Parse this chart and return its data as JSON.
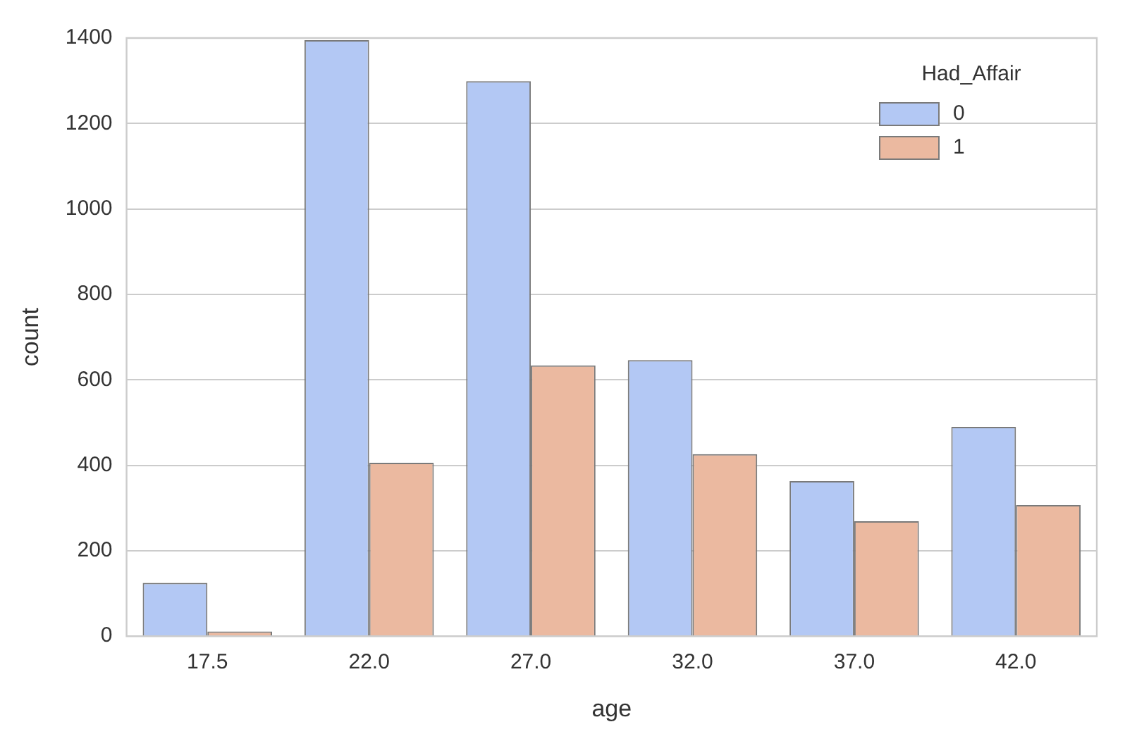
{
  "chart_data": {
    "type": "bar",
    "xlabel": "age",
    "ylabel": "count",
    "legend_title": "Had_Affair",
    "categories": [
      "17.5",
      "22.0",
      "27.0",
      "32.0",
      "37.0",
      "42.0"
    ],
    "series": [
      {
        "name": "0",
        "color": "#b3c8f4",
        "values": [
          125,
          1395,
          1299,
          646,
          363,
          490
        ]
      },
      {
        "name": "1",
        "color": "#ebb9a0",
        "values": [
          11,
          406,
          634,
          426,
          269,
          307
        ]
      }
    ],
    "ylim": [
      0,
      1400
    ],
    "yticks": [
      0,
      200,
      400,
      600,
      800,
      1000,
      1200,
      1400
    ],
    "grid": "y",
    "legend": "top right"
  }
}
